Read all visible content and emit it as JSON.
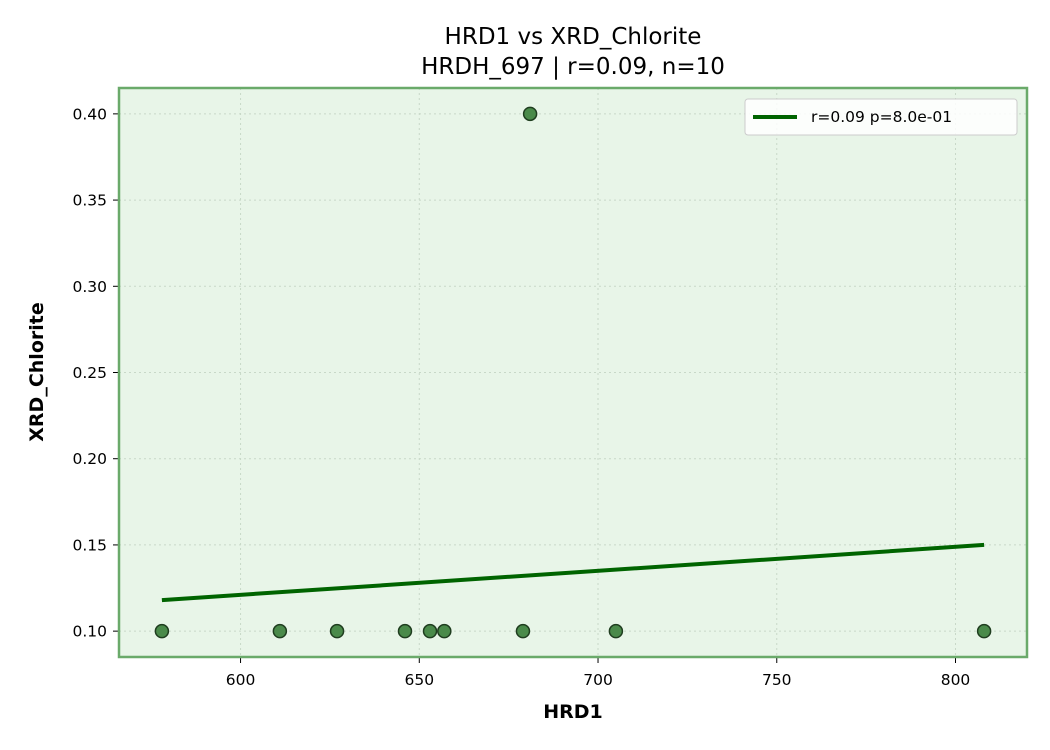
{
  "chart_data": {
    "type": "scatter",
    "title": "HRD1 vs XRD_Chlorite",
    "subtitle": "HRDH_697 | r=0.09, n=10",
    "xlabel": "HRD1",
    "ylabel": "XRD_Chlorite",
    "xlim": [
      566,
      820
    ],
    "ylim": [
      0.085,
      0.415
    ],
    "xticks": [
      600,
      650,
      700,
      750,
      800
    ],
    "yticks": [
      0.1,
      0.15,
      0.2,
      0.25,
      0.3,
      0.35,
      0.4
    ],
    "xtick_labels": [
      "600",
      "650",
      "700",
      "750",
      "800"
    ],
    "ytick_labels": [
      "0.10",
      "0.15",
      "0.20",
      "0.25",
      "0.30",
      "0.35",
      "0.40"
    ],
    "grid": true,
    "legend_position": "top-right",
    "points": [
      {
        "x": 578,
        "y": 0.1
      },
      {
        "x": 611,
        "y": 0.1
      },
      {
        "x": 627,
        "y": 0.1
      },
      {
        "x": 646,
        "y": 0.1
      },
      {
        "x": 653,
        "y": 0.1
      },
      {
        "x": 657,
        "y": 0.1
      },
      {
        "x": 679,
        "y": 0.1
      },
      {
        "x": 681,
        "y": 0.4
      },
      {
        "x": 705,
        "y": 0.1
      },
      {
        "x": 808,
        "y": 0.1
      }
    ],
    "fit_line": {
      "label": "r=0.09  p=8.0e-01",
      "x": [
        578,
        808
      ],
      "y": [
        0.118,
        0.15
      ]
    },
    "colors": {
      "point_fill": "#4a8a4a",
      "point_edge": "#1f3d1f",
      "fit_line": "#006400",
      "plot_background": "#e8f5e8",
      "plot_border": "#6aaa6a",
      "grid": "#c8d8c8"
    }
  }
}
